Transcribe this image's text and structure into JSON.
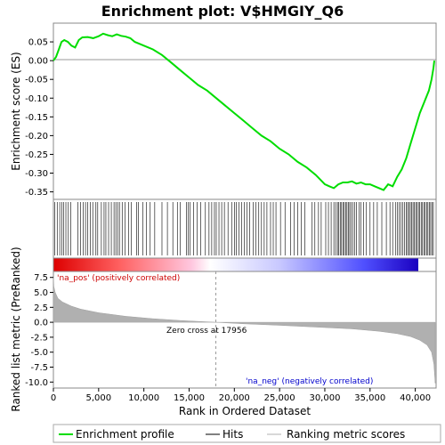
{
  "chart_data": {
    "type": "line",
    "title": "Enrichment plot: V$HMGIY_Q6",
    "xlabel": "Rank in Ordered Dataset",
    "ylabel_top": "Enrichment score (ES)",
    "ylabel_bottom": "Ranked list metric (PreRanked)",
    "x_range": [
      0,
      42300
    ],
    "es_ylim": [
      -0.37,
      0.1
    ],
    "metric_ylim": [
      -11,
      8.5
    ],
    "x_ticks": [
      0,
      5000,
      10000,
      15000,
      20000,
      25000,
      30000,
      35000,
      40000
    ],
    "x_tick_labels": [
      "0",
      "5,000",
      "10,000",
      "15,000",
      "20,000",
      "25,000",
      "30,000",
      "35,000",
      "40,000"
    ],
    "es_ticks": [
      0.05,
      0.0,
      -0.05,
      -0.1,
      -0.15,
      -0.2,
      -0.25,
      -0.3,
      -0.35
    ],
    "es_tick_labels": [
      "0.05",
      "0.00",
      "-0.05",
      "-0.10",
      "-0.15",
      "-0.20",
      "-0.25",
      "-0.30",
      "-0.35"
    ],
    "metric_ticks": [
      7.5,
      5.0,
      2.5,
      0.0,
      -2.5,
      -5.0,
      -7.5,
      -10.0
    ],
    "metric_tick_labels": [
      "7.5",
      "5.0",
      "2.5",
      "0.0",
      "-2.5",
      "-5.0",
      "-7.5",
      "-10.0"
    ],
    "enrichment_profile": {
      "x": [
        0,
        300,
        600,
        900,
        1200,
        1600,
        2000,
        2400,
        2800,
        3200,
        3800,
        4400,
        5000,
        5500,
        6000,
        6500,
        7000,
        7500,
        8000,
        8500,
        9000,
        9500,
        10000,
        11000,
        12000,
        13000,
        14000,
        15000,
        16000,
        17000,
        18000,
        19000,
        20000,
        21000,
        22000,
        23000,
        24000,
        25000,
        26000,
        27000,
        28000,
        29000,
        30000,
        30500,
        31000,
        31500,
        32000,
        32500,
        33000,
        33500,
        34000,
        34500,
        35000,
        35500,
        36000,
        36500,
        37000,
        37500,
        38000,
        38500,
        39000,
        39500,
        40000,
        40500,
        41000,
        41500,
        41800,
        42000,
        42100
      ],
      "y": [
        0.0,
        0.01,
        0.03,
        0.05,
        0.055,
        0.05,
        0.04,
        0.035,
        0.055,
        0.062,
        0.063,
        0.06,
        0.065,
        0.072,
        0.068,
        0.065,
        0.07,
        0.066,
        0.064,
        0.06,
        0.05,
        0.045,
        0.04,
        0.03,
        0.015,
        -0.005,
        -0.025,
        -0.045,
        -0.065,
        -0.08,
        -0.1,
        -0.12,
        -0.14,
        -0.16,
        -0.18,
        -0.2,
        -0.215,
        -0.235,
        -0.25,
        -0.27,
        -0.285,
        -0.305,
        -0.33,
        -0.335,
        -0.34,
        -0.33,
        -0.325,
        -0.325,
        -0.322,
        -0.328,
        -0.325,
        -0.33,
        -0.33,
        -0.335,
        -0.34,
        -0.345,
        -0.33,
        -0.335,
        -0.31,
        -0.29,
        -0.26,
        -0.22,
        -0.18,
        -0.14,
        -0.11,
        -0.08,
        -0.05,
        -0.02,
        0.0
      ]
    },
    "hits_x": [
      150,
      420,
      700,
      920,
      1150,
      1380,
      1650,
      1900,
      2700,
      3000,
      3300,
      3550,
      3800,
      4100,
      4350,
      4700,
      4900,
      5300,
      5600,
      5800,
      6100,
      6400,
      6700,
      6900,
      7100,
      7300,
      7600,
      7900,
      8300,
      8600,
      9200,
      9400,
      9900,
      10300,
      10700,
      11200,
      12000,
      12600,
      13200,
      13700,
      14000,
      14700,
      14900,
      15100,
      15500,
      15900,
      16300,
      16800,
      17200,
      17500,
      17800,
      18000,
      18300,
      18600,
      18900,
      19300,
      19700,
      20000,
      20200,
      20500,
      20800,
      21100,
      21400,
      21700,
      22100,
      22400,
      22700,
      23000,
      23300,
      23600,
      24000,
      24300,
      24600,
      25100,
      25600,
      26200,
      26600,
      27000,
      27400,
      27800,
      28600,
      28900,
      29300,
      29600,
      30100,
      30400,
      30700,
      31000,
      31200,
      31400,
      31550,
      31700,
      31850,
      32000,
      32150,
      32300,
      32450,
      32600,
      32750,
      32900,
      33100,
      33300,
      33500,
      33800,
      34000,
      34300,
      34600,
      35000,
      35400,
      35800,
      36300,
      36800,
      37200,
      37500,
      37800,
      38000,
      38200,
      38400,
      38600,
      38800,
      39000,
      39150,
      39300,
      39450,
      39600,
      39750,
      39900,
      40050,
      40200,
      40350,
      40500,
      40650,
      40800,
      40950,
      41100,
      41250,
      41400,
      41550,
      41700,
      41850,
      42000
    ],
    "metric": {
      "x": [
        0,
        50,
        200,
        500,
        1000,
        2000,
        3000,
        5000,
        8000,
        11000,
        14000,
        17956,
        21000,
        25000,
        29000,
        33000,
        36000,
        38000,
        39500,
        40500,
        41300,
        41800,
        42050,
        42200
      ],
      "y": [
        7.6,
        6.0,
        5.0,
        4.0,
        3.4,
        2.7,
        2.2,
        1.6,
        1.0,
        0.6,
        0.3,
        0.0,
        -0.25,
        -0.5,
        -0.8,
        -1.1,
        -1.5,
        -1.9,
        -2.4,
        -3.0,
        -3.8,
        -5.0,
        -7.0,
        -10.2
      ]
    },
    "zero_cross_label": "Zero cross at 17956",
    "zero_cross_x": 17956,
    "pos_label": "'na_pos' (positively correlated)",
    "neg_label": "'na_neg' (negatively correlated)",
    "legend": [
      "Enrichment profile",
      "Hits",
      "Ranking metric scores"
    ],
    "legend_placement": "bottom",
    "colors": {
      "profile": "#00dd00",
      "hits": "#000000",
      "metric": "#b0b0b0",
      "pos_label": "#cc0000",
      "neg_label": "#0000cc",
      "zero_line": "#999999",
      "heat_pos": "#ff0000",
      "heat_mid": "#ffffff",
      "heat_neg": "#0000ff"
    }
  }
}
